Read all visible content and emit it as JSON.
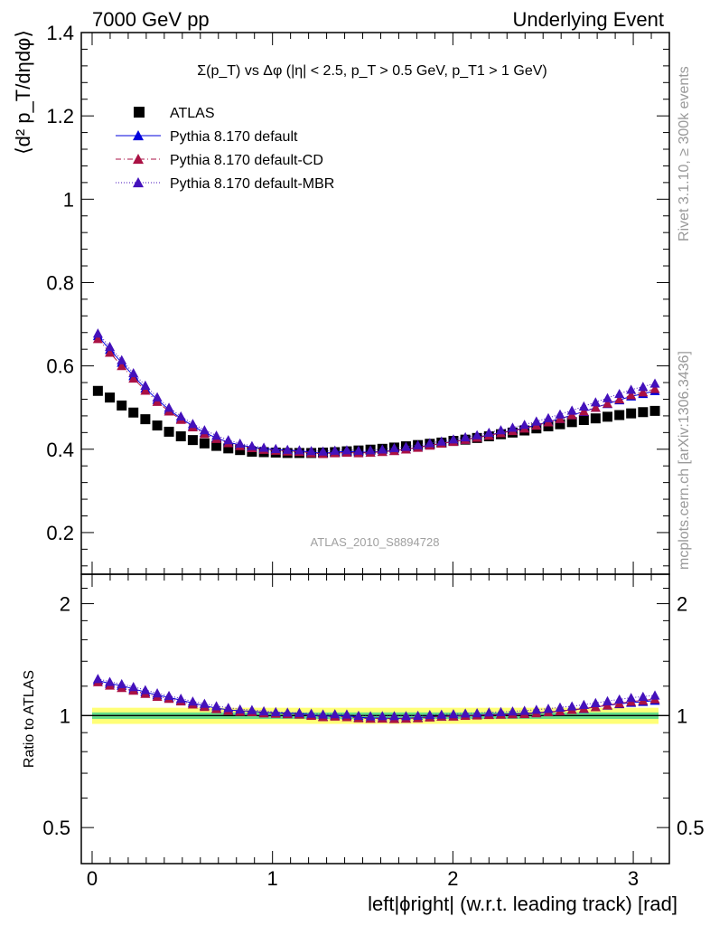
{
  "header": {
    "left": "7000 GeV pp",
    "right": "Underlying Event"
  },
  "side": {
    "rivet": "Rivet 3.1.10, ≥ 300k events",
    "mcplots": "mcplots.cern.ch [arXiv:1306.3436]"
  },
  "watermark": "ATLAS_2010_S8894728",
  "colors": {
    "atlas": "#000000",
    "default": "#0000dd",
    "cd": "#aa1144",
    "mbr": "#4411bb",
    "band_inner": "#66dd88",
    "band_outer": "#ffff77"
  },
  "chart_data": [
    {
      "type": "scatter",
      "title": "Σ(p_T) vs Δφ (|η| < 2.5, p_T > 0.5 GeV, p_T1 > 1 GeV)",
      "xlabel": "",
      "ylabel": "⟨d² p_T/dηdφ⟩",
      "xlim": [
        -0.06,
        3.2
      ],
      "ylim": [
        0.1,
        1.4
      ],
      "legend_position": "top-left",
      "x": [
        0.032,
        0.098,
        0.164,
        0.229,
        0.295,
        0.361,
        0.426,
        0.492,
        0.558,
        0.623,
        0.689,
        0.755,
        0.82,
        0.886,
        0.952,
        1.018,
        1.083,
        1.149,
        1.215,
        1.28,
        1.346,
        1.412,
        1.477,
        1.543,
        1.609,
        1.675,
        1.74,
        1.806,
        1.872,
        1.937,
        2.003,
        2.069,
        2.134,
        2.2,
        2.266,
        2.331,
        2.397,
        2.463,
        2.529,
        2.594,
        2.66,
        2.726,
        2.791,
        2.857,
        2.923,
        2.988,
        3.054,
        3.12
      ],
      "series": [
        {
          "name": "ATLAS",
          "marker": "square",
          "values": [
            0.54,
            0.524,
            0.505,
            0.488,
            0.472,
            0.457,
            0.442,
            0.431,
            0.422,
            0.414,
            0.408,
            0.402,
            0.398,
            0.394,
            0.393,
            0.392,
            0.391,
            0.391,
            0.391,
            0.392,
            0.393,
            0.395,
            0.397,
            0.399,
            0.401,
            0.404,
            0.407,
            0.41,
            0.413,
            0.416,
            0.42,
            0.423,
            0.427,
            0.431,
            0.436,
            0.44,
            0.445,
            0.45,
            0.455,
            0.46,
            0.465,
            0.47,
            0.474,
            0.478,
            0.482,
            0.486,
            0.489,
            0.492
          ]
        },
        {
          "name": "Pythia 8.170 default",
          "marker": "triangle",
          "line": "solid",
          "values": [
            0.672,
            0.639,
            0.608,
            0.576,
            0.546,
            0.519,
            0.495,
            0.474,
            0.456,
            0.44,
            0.427,
            0.417,
            0.41,
            0.405,
            0.401,
            0.399,
            0.397,
            0.396,
            0.393,
            0.39,
            0.393,
            0.395,
            0.393,
            0.393,
            0.395,
            0.397,
            0.4,
            0.405,
            0.41,
            0.414,
            0.419,
            0.423,
            0.429,
            0.434,
            0.44,
            0.445,
            0.451,
            0.458,
            0.466,
            0.473,
            0.482,
            0.49,
            0.5,
            0.509,
            0.518,
            0.527,
            0.533,
            0.54
          ]
        },
        {
          "name": "Pythia 8.170 default-CD",
          "marker": "triangle",
          "line": "dashdot",
          "values": [
            0.665,
            0.632,
            0.6,
            0.57,
            0.541,
            0.514,
            0.491,
            0.471,
            0.453,
            0.437,
            0.425,
            0.415,
            0.408,
            0.403,
            0.399,
            0.397,
            0.395,
            0.394,
            0.391,
            0.389,
            0.391,
            0.392,
            0.391,
            0.392,
            0.394,
            0.396,
            0.4,
            0.404,
            0.409,
            0.414,
            0.418,
            0.423,
            0.428,
            0.433,
            0.439,
            0.444,
            0.45,
            0.457,
            0.465,
            0.473,
            0.482,
            0.491,
            0.5,
            0.51,
            0.52,
            0.53,
            0.537,
            0.545
          ]
        },
        {
          "name": "Pythia 8.170 default-MBR",
          "marker": "triangle",
          "line": "dotted",
          "values": [
            0.678,
            0.646,
            0.614,
            0.583,
            0.553,
            0.525,
            0.5,
            0.479,
            0.461,
            0.446,
            0.433,
            0.422,
            0.414,
            0.408,
            0.404,
            0.401,
            0.399,
            0.398,
            0.396,
            0.395,
            0.397,
            0.398,
            0.397,
            0.398,
            0.4,
            0.403,
            0.406,
            0.41,
            0.415,
            0.419,
            0.424,
            0.429,
            0.434,
            0.44,
            0.446,
            0.452,
            0.459,
            0.467,
            0.475,
            0.484,
            0.493,
            0.503,
            0.513,
            0.523,
            0.533,
            0.543,
            0.55,
            0.558
          ]
        }
      ],
      "yticks": [
        0.2,
        0.4,
        0.6,
        0.8,
        1,
        1.2,
        1.4
      ],
      "ytick_labels": [
        "0.2",
        "0.4",
        "0.6",
        "0.8",
        "1",
        "1.2",
        "1.4"
      ]
    },
    {
      "type": "scatter",
      "title": "",
      "xlabel": "left|ϕright| (w.r.t. leading track) [rad]",
      "ylabel": "Ratio to ATLAS",
      "xlim": [
        -0.06,
        3.2
      ],
      "ylim": [
        0.4,
        2.4
      ],
      "yscale": "log",
      "xticks": [
        0,
        1,
        2,
        3
      ],
      "xtick_labels": [
        "0",
        "1",
        "2",
        "3"
      ],
      "yticks": [
        0.5,
        1,
        2
      ],
      "ytick_labels": [
        "0.5",
        "1",
        "2"
      ],
      "band_inner": 0.02,
      "band_outer": 0.05,
      "series": [
        {
          "name": "Pythia 8.170 default",
          "values": [
            1.244,
            1.219,
            1.204,
            1.18,
            1.157,
            1.136,
            1.12,
            1.1,
            1.081,
            1.063,
            1.047,
            1.037,
            1.03,
            1.028,
            1.02,
            1.018,
            1.015,
            1.013,
            1.005,
            0.995,
            1.0,
            1.0,
            0.99,
            0.985,
            0.985,
            0.983,
            0.983,
            0.988,
            0.993,
            0.995,
            0.998,
            1.0,
            1.005,
            1.007,
            1.009,
            1.011,
            1.013,
            1.018,
            1.024,
            1.028,
            1.037,
            1.043,
            1.055,
            1.065,
            1.075,
            1.084,
            1.09,
            1.098
          ]
        },
        {
          "name": "Pythia 8.170 default-CD",
          "values": [
            1.231,
            1.206,
            1.188,
            1.168,
            1.146,
            1.125,
            1.111,
            1.093,
            1.073,
            1.056,
            1.042,
            1.032,
            1.025,
            1.023,
            1.015,
            1.013,
            1.01,
            1.008,
            1.0,
            0.992,
            0.995,
            0.992,
            0.985,
            0.982,
            0.983,
            0.98,
            0.983,
            0.985,
            0.99,
            0.995,
            0.995,
            1.0,
            1.002,
            1.005,
            1.007,
            1.009,
            1.011,
            1.016,
            1.022,
            1.028,
            1.037,
            1.045,
            1.055,
            1.067,
            1.079,
            1.091,
            1.098,
            1.108
          ]
        },
        {
          "name": "Pythia 8.170 default-MBR",
          "values": [
            1.256,
            1.233,
            1.216,
            1.195,
            1.172,
            1.149,
            1.131,
            1.111,
            1.092,
            1.077,
            1.061,
            1.05,
            1.04,
            1.036,
            1.028,
            1.023,
            1.02,
            1.018,
            1.013,
            1.008,
            1.01,
            1.008,
            1.0,
            0.997,
            0.998,
            0.998,
            0.998,
            1.0,
            1.005,
            1.007,
            1.01,
            1.014,
            1.016,
            1.021,
            1.023,
            1.027,
            1.031,
            1.038,
            1.044,
            1.052,
            1.06,
            1.07,
            1.082,
            1.094,
            1.106,
            1.117,
            1.125,
            1.134
          ]
        }
      ]
    }
  ]
}
